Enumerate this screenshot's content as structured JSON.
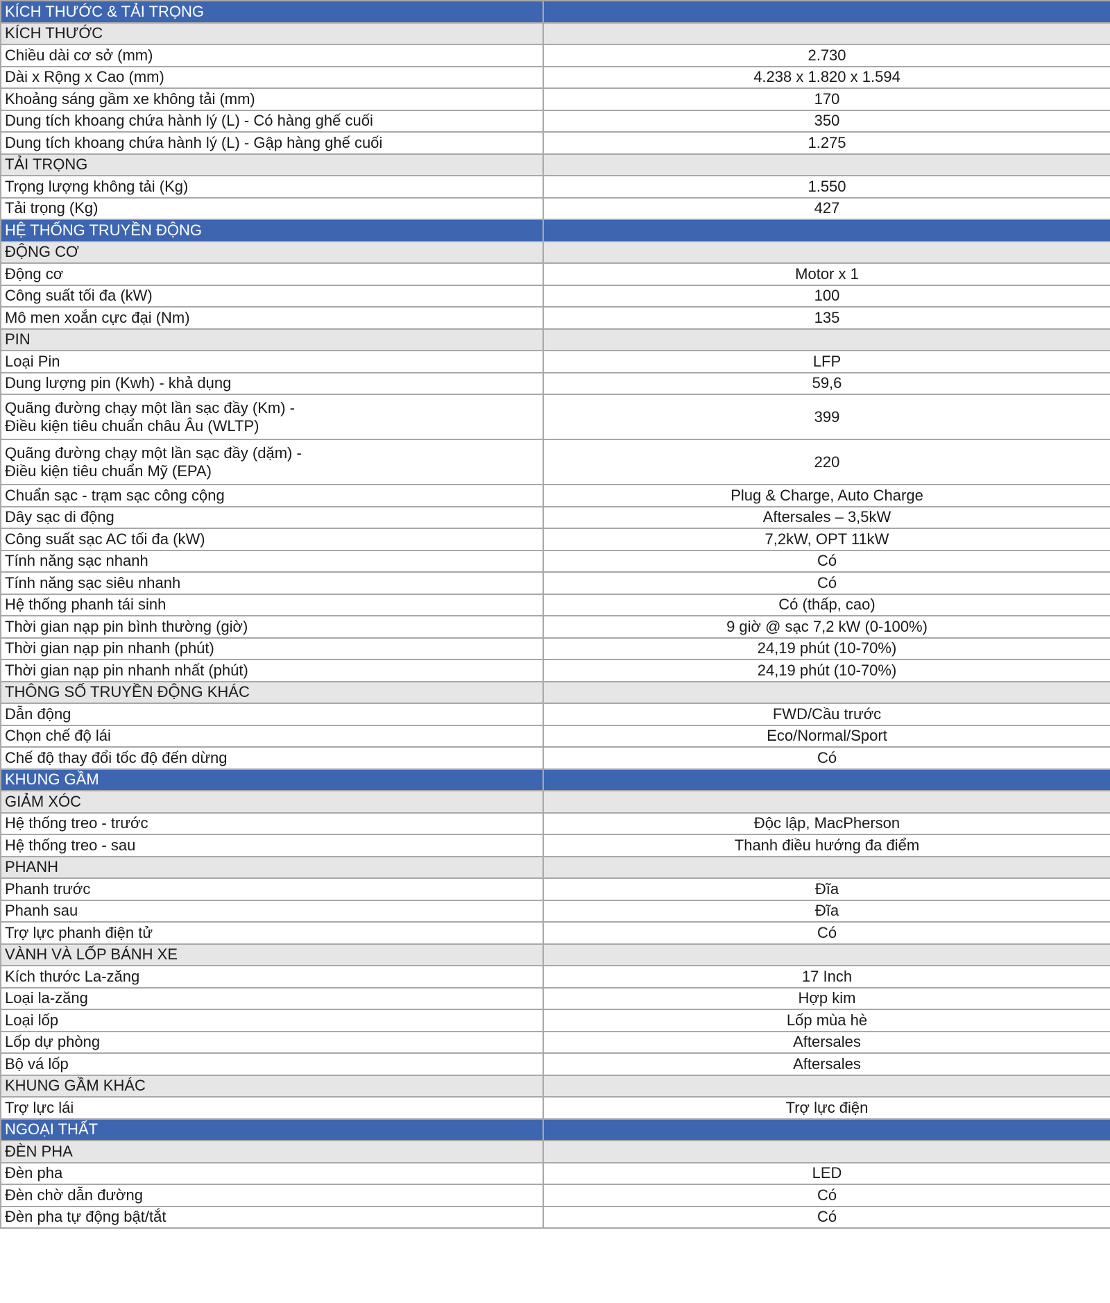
{
  "colors": {
    "section_bg": "#3e66b0",
    "subsection_bg": "#e6e6e6",
    "border": "#a8a8a8"
  },
  "rows": [
    {
      "type": "section",
      "label": "KÍCH THƯỚC & TẢI TRỌNG",
      "value": ""
    },
    {
      "type": "sub",
      "label": "KÍCH THƯỚC",
      "value": ""
    },
    {
      "type": "item",
      "label": "Chiều dài cơ sở (mm)",
      "value": "2.730"
    },
    {
      "type": "item",
      "label": "Dài x Rộng x Cao (mm)",
      "value": "4.238 x 1.820 x  1.594"
    },
    {
      "type": "item",
      "label": "Khoảng sáng gầm xe không tải (mm)",
      "value": "170"
    },
    {
      "type": "item",
      "label": "Dung tích khoang chứa hành lý (L) - Có hàng ghế cuối",
      "value": "350"
    },
    {
      "type": "item",
      "label": "Dung tích khoang chứa hành lý (L) - Gập hàng ghế cuối",
      "value": "1.275"
    },
    {
      "type": "sub",
      "label": "TẢI TRỌNG",
      "value": ""
    },
    {
      "type": "item",
      "label": "Trọng lượng không tải (Kg)",
      "value": "1.550"
    },
    {
      "type": "item",
      "label": "Tải trọng (Kg)",
      "value": "427"
    },
    {
      "type": "section",
      "label": "HỆ THỐNG TRUYỀN ĐỘNG",
      "value": ""
    },
    {
      "type": "sub",
      "label": "ĐỘNG CƠ",
      "value": ""
    },
    {
      "type": "item",
      "label": "Động cơ",
      "value": "Motor x 1"
    },
    {
      "type": "item",
      "label": "Công suất tối đa (kW)",
      "value": "100"
    },
    {
      "type": "item",
      "label": "Mô men xoắn cực đại (Nm)",
      "value": "135"
    },
    {
      "type": "sub",
      "label": "PIN",
      "value": ""
    },
    {
      "type": "item",
      "label": "Loại Pin",
      "value": "LFP"
    },
    {
      "type": "item",
      "label": "Dung lượng pin (Kwh) - khả dụng",
      "value": "59,6"
    },
    {
      "type": "double",
      "label": "Quãng đường chạy một lần sạc đầy (Km) -",
      "label2": "Điều kiện tiêu chuẩn châu Âu (WLTP)",
      "value": "399"
    },
    {
      "type": "double",
      "label": "Quãng đường chạy một lần sạc đầy (dặm) -",
      "label2": "Điều kiện tiêu chuẩn Mỹ (EPA)",
      "value": "220"
    },
    {
      "type": "item",
      "label": "Chuẩn sạc - trạm sạc công cộng",
      "value": "Plug & Charge, Auto Charge"
    },
    {
      "type": "item",
      "label": "Dây sạc di động",
      "value": "Aftersales – 3,5kW"
    },
    {
      "type": "item",
      "label": "Công suất sạc AC tối đa (kW)",
      "value": "7,2kW, OPT 11kW"
    },
    {
      "type": "item",
      "label": "Tính năng sạc nhanh",
      "value": "Có"
    },
    {
      "type": "item",
      "label": "Tính năng sạc siêu nhanh",
      "value": "Có"
    },
    {
      "type": "item",
      "label": "Hệ thống phanh tái sinh",
      "value": "Có (thấp, cao)"
    },
    {
      "type": "item",
      "label": "Thời gian nạp pin bình thường (giờ)",
      "value": "9 giờ @ sạc 7,2 kW (0-100%)"
    },
    {
      "type": "item",
      "label": "Thời gian nạp pin nhanh (phút)",
      "value": "24,19 phút (10-70%)"
    },
    {
      "type": "item",
      "label": "Thời gian nạp pin nhanh nhất (phút)",
      "value": "24,19 phút (10-70%)"
    },
    {
      "type": "sub",
      "label": "THÔNG SỐ TRUYỀN ĐỘNG KHÁC",
      "value": ""
    },
    {
      "type": "item",
      "label": "Dẫn động",
      "value": "FWD/Cầu trước"
    },
    {
      "type": "item",
      "label": "Chọn chế độ lái",
      "value": "Eco/Normal/Sport"
    },
    {
      "type": "item",
      "label": "Chế độ thay đổi tốc độ đến dừng",
      "value": "Có"
    },
    {
      "type": "section",
      "label": "KHUNG GẦM",
      "value": ""
    },
    {
      "type": "sub",
      "label": "GIẢM XÓC",
      "value": ""
    },
    {
      "type": "item",
      "label": "Hệ thống treo - trước",
      "value": "Độc lập, MacPherson"
    },
    {
      "type": "item",
      "label": "Hệ thống treo - sau",
      "value": "Thanh điều hướng đa điểm"
    },
    {
      "type": "sub",
      "label": "PHANH",
      "value": ""
    },
    {
      "type": "item",
      "label": "Phanh trước",
      "value": "Đĩa"
    },
    {
      "type": "item",
      "label": "Phanh sau",
      "value": "Đĩa"
    },
    {
      "type": "item",
      "label": "Trợ lực phanh điện tử",
      "value": "Có"
    },
    {
      "type": "sub",
      "label": "VÀNH VÀ LỐP BÁNH XE",
      "value": ""
    },
    {
      "type": "item",
      "label": "Kích thước La-zăng",
      "value": "17 Inch"
    },
    {
      "type": "item",
      "label": "Loại la-zăng",
      "value": "Hợp kim"
    },
    {
      "type": "item",
      "label": "Loại lốp",
      "value": "Lốp mùa hè"
    },
    {
      "type": "item",
      "label": "Lốp dự phòng",
      "value": "Aftersales"
    },
    {
      "type": "item",
      "label": "Bộ vá lốp",
      "value": "Aftersales"
    },
    {
      "type": "sub",
      "label": "KHUNG GẦM KHÁC",
      "value": ""
    },
    {
      "type": "item",
      "label": "Trợ lực lái",
      "value": "Trợ lực điện"
    },
    {
      "type": "section",
      "label": "NGOẠI THẤT",
      "value": ""
    },
    {
      "type": "sub",
      "label": "ĐÈN PHA",
      "value": ""
    },
    {
      "type": "item",
      "label": "Đèn pha",
      "value": "LED"
    },
    {
      "type": "item",
      "label": "Đèn chờ dẫn đường",
      "value": "Có"
    },
    {
      "type": "item",
      "label": "Đèn pha tự động bật/tắt",
      "value": "Có"
    }
  ]
}
